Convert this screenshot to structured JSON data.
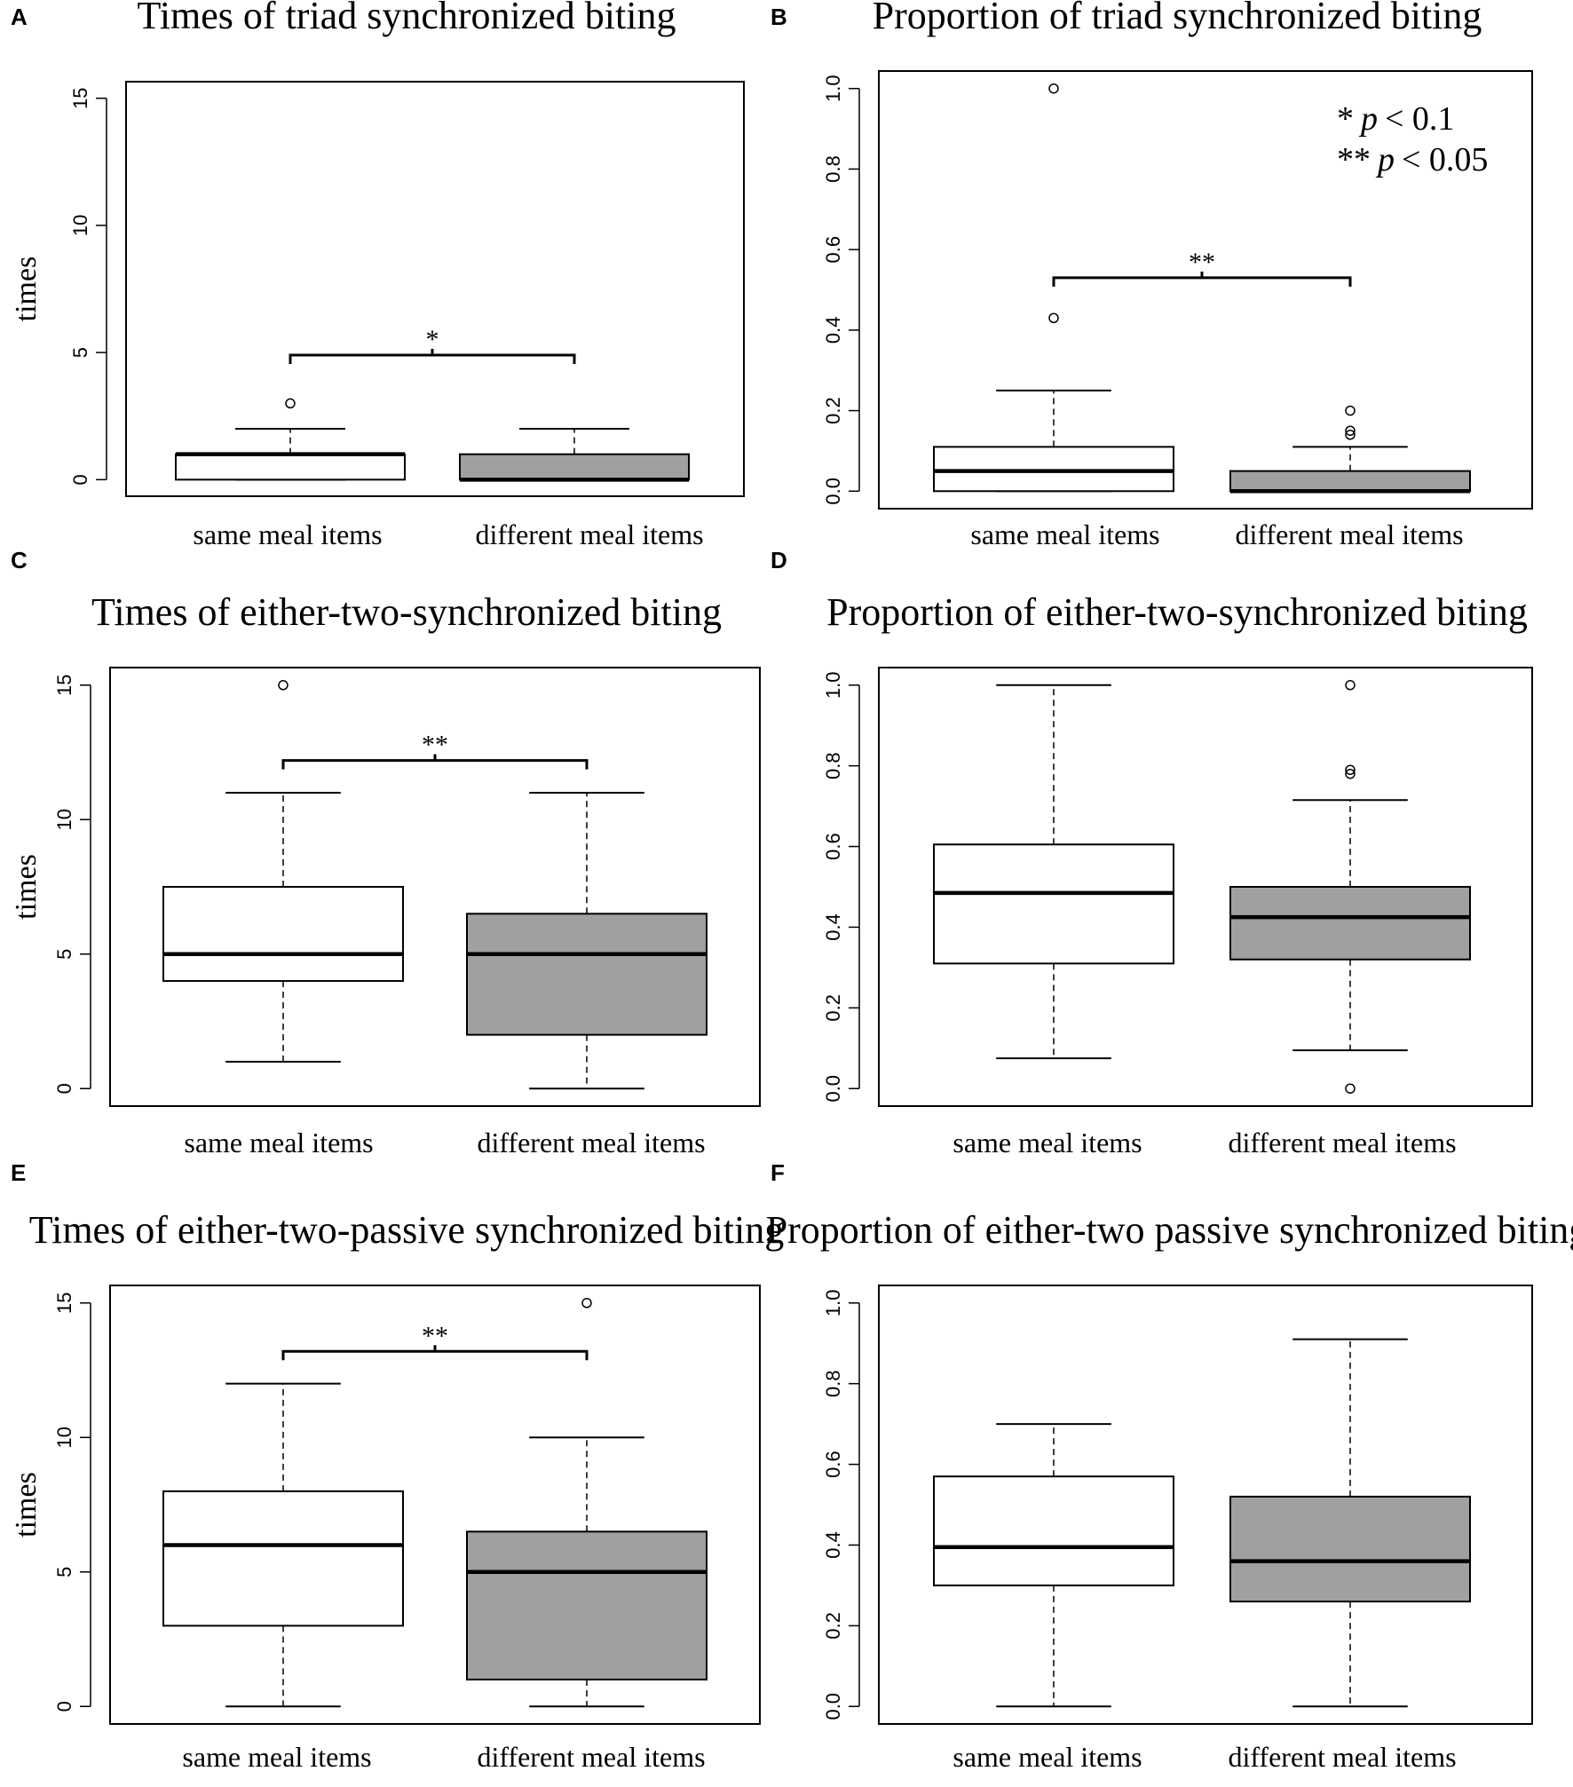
{
  "chart_data": [
    {
      "id": "A",
      "type": "box",
      "panel_label": "A",
      "title": "Times of triad synchronized biting",
      "ylabel": "times",
      "ylim": [
        0,
        15
      ],
      "yticks": [
        0,
        5,
        10,
        15
      ],
      "categories": [
        "same meal items",
        "different meal items"
      ],
      "boxes": [
        {
          "category": "same meal items",
          "whisker_low": 0,
          "q1": 0,
          "median": 1,
          "q3": 1,
          "whisker_high": 2,
          "outliers": [
            3
          ],
          "fill": "#ffffff"
        },
        {
          "category": "different meal items",
          "whisker_low": 0,
          "q1": 0,
          "median": 0,
          "q3": 1,
          "whisker_high": 2,
          "outliers": [],
          "fill": "#a0a0a0"
        }
      ],
      "significance": {
        "label": "*",
        "y": 4.9
      }
    },
    {
      "id": "B",
      "type": "box",
      "panel_label": "B",
      "title": "Proportion of triad synchronized biting",
      "ylabel": "",
      "ylim": [
        0,
        1
      ],
      "yticks": [
        0.0,
        0.2,
        0.4,
        0.6,
        0.8,
        1.0
      ],
      "ytick_labels": [
        "0.0",
        "0.2",
        "0.4",
        "0.6",
        "0.8",
        "1.0"
      ],
      "categories": [
        "same meal items",
        "different meal items"
      ],
      "boxes": [
        {
          "category": "same meal items",
          "whisker_low": 0,
          "q1": 0,
          "median": 0.05,
          "q3": 0.11,
          "whisker_high": 0.25,
          "outliers": [
            0.43,
            1.0
          ],
          "fill": "#ffffff"
        },
        {
          "category": "different meal items",
          "whisker_low": 0,
          "q1": 0,
          "median": 0,
          "q3": 0.05,
          "whisker_high": 0.11,
          "outliers": [
            0.14,
            0.15,
            0.2
          ],
          "fill": "#a0a0a0"
        }
      ],
      "significance": {
        "label": "**",
        "y": 0.53
      },
      "legend": {
        "line1_stars": "*",
        "line1_p": "p",
        "line1_rest": "< 0.1",
        "line2_stars": "**",
        "line2_p": "p",
        "line2_rest": "< 0.05"
      }
    },
    {
      "id": "C",
      "type": "box",
      "panel_label": "C",
      "title": "Times of either-two-synchronized biting",
      "ylabel": "times",
      "ylim": [
        0,
        15
      ],
      "yticks": [
        0,
        5,
        10,
        15
      ],
      "categories": [
        "same meal items",
        "different meal items"
      ],
      "boxes": [
        {
          "category": "same meal items",
          "whisker_low": 1,
          "q1": 4,
          "median": 5,
          "q3": 7.5,
          "whisker_high": 11,
          "outliers": [
            15
          ],
          "fill": "#ffffff"
        },
        {
          "category": "different meal items",
          "whisker_low": 0,
          "q1": 2,
          "median": 5,
          "q3": 6.5,
          "whisker_high": 11,
          "outliers": [],
          "fill": "#a0a0a0"
        }
      ],
      "significance": {
        "label": "**",
        "y": 12.2
      }
    },
    {
      "id": "D",
      "type": "box",
      "panel_label": "D",
      "title": "Proportion of either-two-synchronized biting",
      "ylabel": "",
      "ylim": [
        0,
        1
      ],
      "yticks": [
        0.0,
        0.2,
        0.4,
        0.6,
        0.8,
        1.0
      ],
      "ytick_labels": [
        "0.0",
        "0.2",
        "0.4",
        "0.6",
        "0.8",
        "1.0"
      ],
      "categories": [
        "same meal items",
        "different meal items"
      ],
      "boxes": [
        {
          "category": "same meal items",
          "whisker_low": 0.075,
          "q1": 0.31,
          "median": 0.485,
          "q3": 0.605,
          "whisker_high": 1.0,
          "outliers": [],
          "fill": "#ffffff"
        },
        {
          "category": "different meal items",
          "whisker_low": 0.095,
          "q1": 0.32,
          "median": 0.425,
          "q3": 0.5,
          "whisker_high": 0.715,
          "outliers": [
            0.0,
            0.78,
            0.79,
            1.0
          ],
          "fill": "#a0a0a0"
        }
      ]
    },
    {
      "id": "E",
      "type": "box",
      "panel_label": "E",
      "title": "Times of either-two-passive synchronized biting",
      "ylabel": "times",
      "ylim": [
        0,
        15
      ],
      "yticks": [
        0,
        5,
        10,
        15
      ],
      "categories": [
        "same meal items",
        "different meal items"
      ],
      "boxes": [
        {
          "category": "same meal items",
          "whisker_low": 0,
          "q1": 3,
          "median": 6,
          "q3": 8,
          "whisker_high": 12,
          "outliers": [],
          "fill": "#ffffff"
        },
        {
          "category": "different meal items",
          "whisker_low": 0,
          "q1": 1,
          "median": 5,
          "q3": 6.5,
          "whisker_high": 10,
          "outliers": [
            15
          ],
          "fill": "#a0a0a0"
        }
      ],
      "significance": {
        "label": "**",
        "y": 13.2
      }
    },
    {
      "id": "F",
      "type": "box",
      "panel_label": "F",
      "title": "Proportion of either-two passive synchronized biting",
      "ylabel": "",
      "ylim": [
        0,
        1
      ],
      "yticks": [
        0.0,
        0.2,
        0.4,
        0.6,
        0.8,
        1.0
      ],
      "ytick_labels": [
        "0.0",
        "0.2",
        "0.4",
        "0.6",
        "0.8",
        "1.0"
      ],
      "categories": [
        "same meal items",
        "different meal items"
      ],
      "boxes": [
        {
          "category": "same meal items",
          "whisker_low": 0,
          "q1": 0.3,
          "median": 0.395,
          "q3": 0.57,
          "whisker_high": 0.7,
          "outliers": [],
          "fill": "#ffffff"
        },
        {
          "category": "different meal items",
          "whisker_low": 0,
          "q1": 0.26,
          "median": 0.36,
          "q3": 0.52,
          "whisker_high": 0.91,
          "outliers": [],
          "fill": "#a0a0a0"
        }
      ]
    }
  ]
}
